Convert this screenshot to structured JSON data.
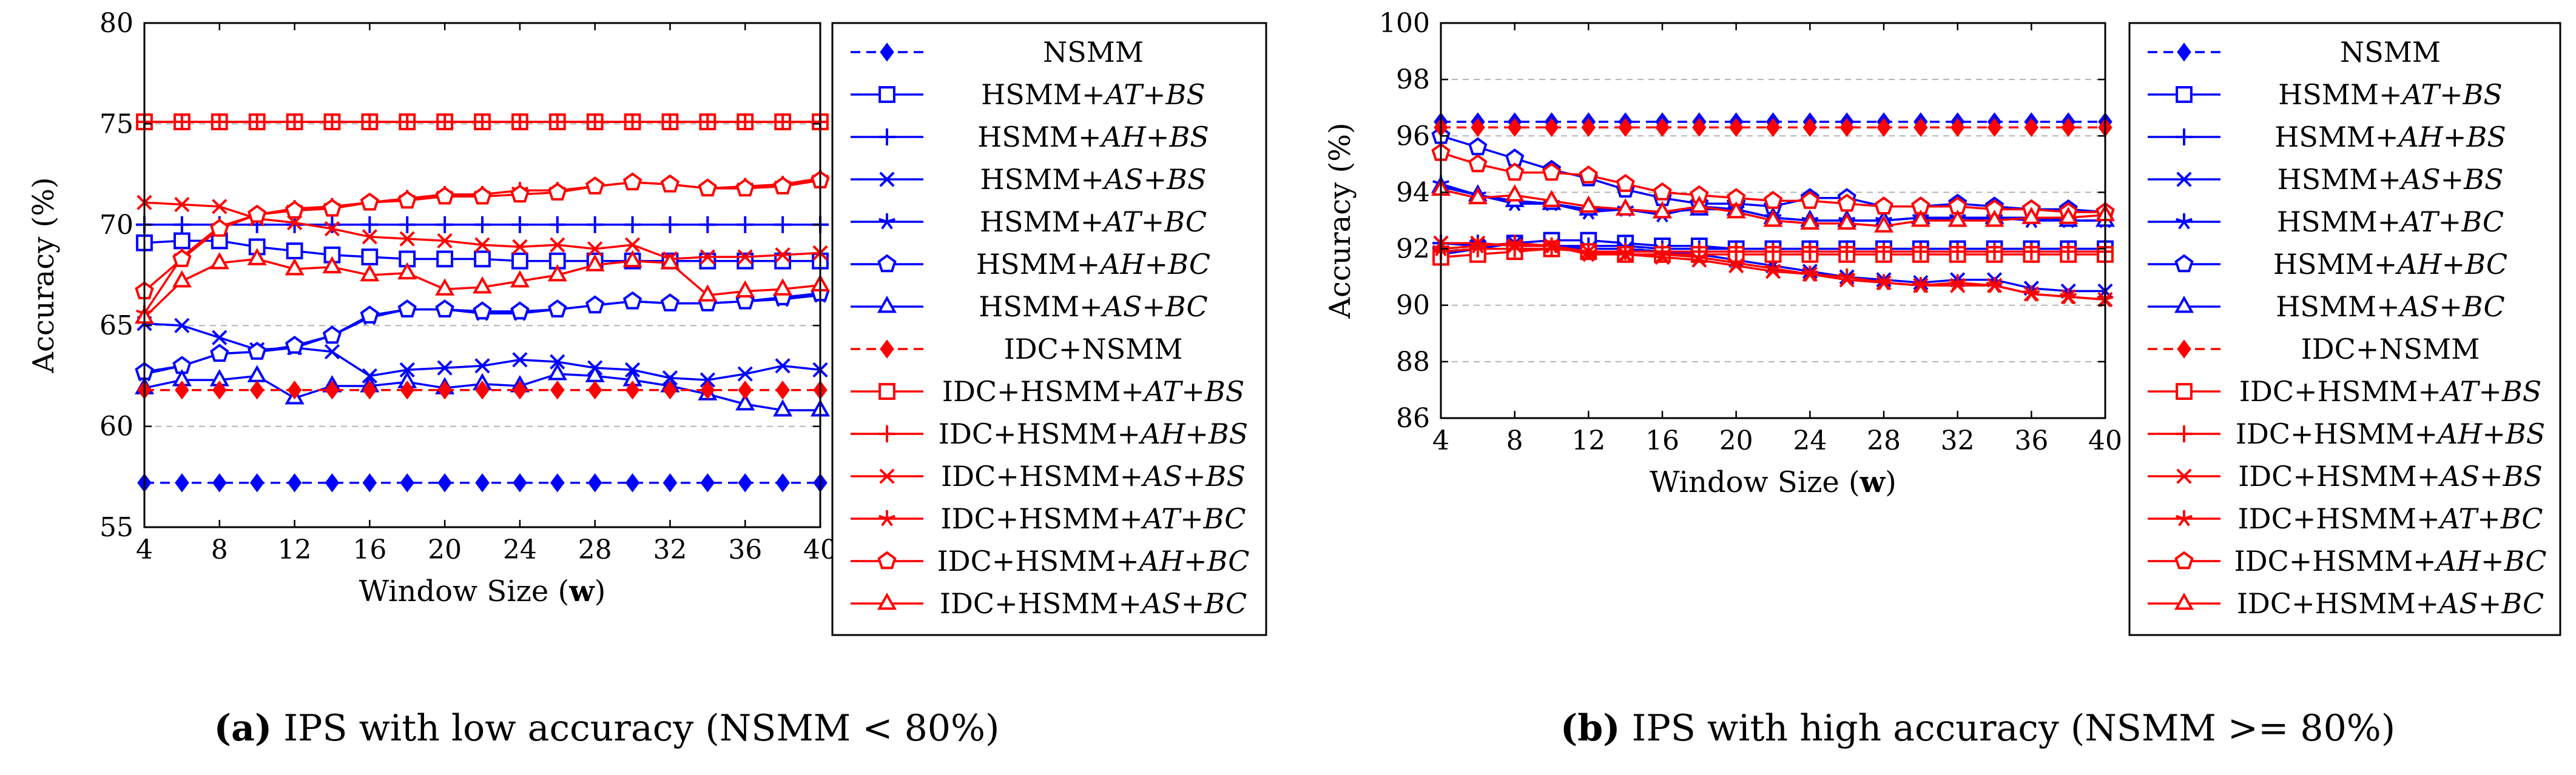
{
  "figure": {
    "colors": {
      "blue": "#0000ff",
      "red": "#ff0000",
      "grid": "#b3b3b3",
      "axis": "#000000"
    }
  },
  "chart_data": [
    {
      "type": "line",
      "caption": {
        "label": "(a)",
        "text": " IPS with low accuracy (NSMM < 80%)"
      },
      "xlabel": {
        "main": "Window Size (",
        "bold": "w",
        "end": ")"
      },
      "ylabel": "Accuracy (%)",
      "xlim": [
        4,
        40
      ],
      "ylim": [
        55,
        80
      ],
      "xticks": [
        4,
        8,
        12,
        16,
        20,
        24,
        28,
        32,
        36,
        40
      ],
      "yticks": [
        55,
        60,
        65,
        70,
        75,
        80
      ],
      "grid": "horizontal dashed",
      "legend_position": "right",
      "x": [
        4,
        6,
        8,
        10,
        12,
        14,
        16,
        18,
        20,
        22,
        24,
        26,
        28,
        30,
        32,
        34,
        36,
        38,
        40
      ],
      "series": [
        {
          "name": "NSMM",
          "color": "blue",
          "marker": "diamond",
          "dashed": true,
          "values": [
            57.2,
            57.2,
            57.2,
            57.2,
            57.2,
            57.2,
            57.2,
            57.2,
            57.2,
            57.2,
            57.2,
            57.2,
            57.2,
            57.2,
            57.2,
            57.2,
            57.2,
            57.2,
            57.2
          ]
        },
        {
          "name": "HSMM+AT+BS",
          "base": "HSMM+",
          "italic": "AT",
          "mid": "+",
          "italic2": "BS",
          "color": "blue",
          "marker": "square",
          "values": [
            69.1,
            69.2,
            69.2,
            68.9,
            68.7,
            68.5,
            68.4,
            68.3,
            68.3,
            68.3,
            68.2,
            68.2,
            68.2,
            68.2,
            68.2,
            68.2,
            68.2,
            68.2,
            68.2
          ]
        },
        {
          "name": "HSMM+AH+BS",
          "base": "HSMM+",
          "italic": "AH",
          "mid": "+",
          "italic2": "BS",
          "color": "blue",
          "marker": "plus",
          "values": [
            70.0,
            70.0,
            70.0,
            70.0,
            70.0,
            70.0,
            70.0,
            70.0,
            70.0,
            70.0,
            70.0,
            70.0,
            70.0,
            70.0,
            70.0,
            70.0,
            70.0,
            70.0,
            70.0
          ]
        },
        {
          "name": "HSMM+AS+BS",
          "base": "HSMM+",
          "italic": "AS",
          "mid": "+",
          "italic2": "BS",
          "color": "blue",
          "marker": "x",
          "values": [
            65.1,
            65.0,
            64.4,
            63.8,
            63.9,
            63.7,
            62.5,
            62.8,
            62.9,
            63.0,
            63.3,
            63.2,
            62.9,
            62.8,
            62.4,
            62.3,
            62.6,
            63.0,
            62.8
          ]
        },
        {
          "name": "HSMM+AT+BC",
          "base": "HSMM+",
          "italic": "AT",
          "mid": "+",
          "italic2": "BC",
          "color": "blue",
          "marker": "star",
          "values": [
            62.6,
            63.0,
            63.6,
            63.7,
            63.9,
            64.5,
            65.4,
            65.8,
            65.8,
            65.6,
            65.6,
            65.8,
            66.0,
            66.2,
            66.1,
            66.1,
            66.2,
            66.3,
            66.5
          ]
        },
        {
          "name": "HSMM+AH+BC",
          "base": "HSMM+",
          "italic": "AH",
          "mid": "+",
          "italic2": "BC",
          "color": "blue",
          "marker": "pentagon",
          "values": [
            62.7,
            63.0,
            63.6,
            63.7,
            64.0,
            64.5,
            65.5,
            65.8,
            65.8,
            65.7,
            65.7,
            65.8,
            66.0,
            66.2,
            66.1,
            66.1,
            66.2,
            66.4,
            66.6
          ]
        },
        {
          "name": "HSMM+AS+BC",
          "base": "HSMM+",
          "italic": "AS",
          "mid": "+",
          "italic2": "BC",
          "color": "blue",
          "marker": "triangle",
          "values": [
            61.9,
            62.3,
            62.3,
            62.5,
            61.4,
            62.0,
            62.0,
            62.2,
            61.9,
            62.1,
            62.0,
            62.6,
            62.5,
            62.3,
            62.0,
            61.6,
            61.1,
            60.8,
            60.8
          ]
        },
        {
          "name": "IDC+NSMM",
          "color": "red",
          "marker": "diamond",
          "dashed": true,
          "values": [
            61.8,
            61.8,
            61.8,
            61.8,
            61.8,
            61.8,
            61.8,
            61.8,
            61.8,
            61.8,
            61.8,
            61.8,
            61.8,
            61.8,
            61.8,
            61.8,
            61.8,
            61.8,
            61.8
          ]
        },
        {
          "name": "IDC+HSMM+AT+BS",
          "base": "IDC+HSMM+",
          "italic": "AT",
          "mid": "+",
          "italic2": "BS",
          "color": "red",
          "marker": "square",
          "values": [
            75.1,
            75.1,
            75.1,
            75.1,
            75.1,
            75.1,
            75.1,
            75.1,
            75.1,
            75.1,
            75.1,
            75.1,
            75.1,
            75.1,
            75.1,
            75.1,
            75.1,
            75.1,
            75.1
          ]
        },
        {
          "name": "IDC+HSMM+AH+BS",
          "base": "IDC+HSMM+",
          "italic": "AH",
          "mid": "+",
          "italic2": "BS",
          "color": "red",
          "marker": "plus",
          "values": [
            75.1,
            75.1,
            75.1,
            75.1,
            75.1,
            75.1,
            75.1,
            75.1,
            75.1,
            75.1,
            75.1,
            75.1,
            75.1,
            75.1,
            75.1,
            75.1,
            75.1,
            75.1,
            75.1
          ]
        },
        {
          "name": "IDC+HSMM+AS+BS",
          "base": "IDC+HSMM+",
          "italic": "AS",
          "mid": "+",
          "italic2": "BS",
          "color": "red",
          "marker": "x",
          "values": [
            71.1,
            71.0,
            70.9,
            70.3,
            70.1,
            69.8,
            69.4,
            69.3,
            69.2,
            69.0,
            68.9,
            69.0,
            68.8,
            69.0,
            68.3,
            68.4,
            68.4,
            68.5,
            68.6
          ]
        },
        {
          "name": "IDC+HSMM+AT+BC",
          "base": "IDC+HSMM+",
          "italic": "AT",
          "mid": "+",
          "italic2": "BC",
          "color": "red",
          "marker": "star",
          "values": [
            65.6,
            68.4,
            69.9,
            70.5,
            70.8,
            70.9,
            71.1,
            71.3,
            71.5,
            71.5,
            71.7,
            71.7,
            71.9,
            72.1,
            72.0,
            71.8,
            71.9,
            72.0,
            72.3
          ]
        },
        {
          "name": "IDC+HSMM+AH+BC",
          "base": "IDC+HSMM+",
          "italic": "AH",
          "mid": "+",
          "italic2": "BC",
          "color": "red",
          "marker": "pentagon",
          "values": [
            66.7,
            68.3,
            69.8,
            70.5,
            70.7,
            70.8,
            71.1,
            71.2,
            71.4,
            71.4,
            71.5,
            71.6,
            71.9,
            72.1,
            72.0,
            71.8,
            71.8,
            71.9,
            72.2
          ]
        },
        {
          "name": "IDC+HSMM+AS+BC",
          "base": "IDC+HSMM+",
          "italic": "AS",
          "mid": "+",
          "italic2": "BC",
          "color": "red",
          "marker": "triangle",
          "values": [
            65.4,
            67.2,
            68.1,
            68.3,
            67.8,
            67.9,
            67.5,
            67.6,
            66.8,
            66.9,
            67.2,
            67.5,
            68.0,
            68.2,
            68.1,
            66.5,
            66.7,
            66.8,
            67.0
          ]
        }
      ]
    },
    {
      "type": "line",
      "caption": {
        "label": "(b)",
        "text": " IPS with high accuracy (NSMM >= 80%)"
      },
      "xlabel": {
        "main": "Window Size (",
        "bold": "w",
        "end": ")"
      },
      "ylabel": "Accuracy (%)",
      "xlim": [
        4,
        40
      ],
      "ylim": [
        86,
        100
      ],
      "xticks": [
        4,
        8,
        12,
        16,
        20,
        24,
        28,
        32,
        36,
        40
      ],
      "yticks": [
        86,
        88,
        90,
        92,
        94,
        96,
        98,
        100
      ],
      "grid": "horizontal dashed",
      "legend_position": "right",
      "x": [
        4,
        6,
        8,
        10,
        12,
        14,
        16,
        18,
        20,
        22,
        24,
        26,
        28,
        30,
        32,
        34,
        36,
        38,
        40
      ],
      "series": [
        {
          "name": "NSMM",
          "color": "blue",
          "marker": "diamond",
          "dashed": true,
          "values": [
            96.5,
            96.5,
            96.5,
            96.5,
            96.5,
            96.5,
            96.5,
            96.5,
            96.5,
            96.5,
            96.5,
            96.5,
            96.5,
            96.5,
            96.5,
            96.5,
            96.5,
            96.5,
            96.5
          ]
        },
        {
          "name": "HSMM+AT+BS",
          "base": "HSMM+",
          "italic": "AT",
          "mid": "+",
          "italic2": "BS",
          "color": "blue",
          "marker": "square",
          "values": [
            91.8,
            92.0,
            92.2,
            92.3,
            92.3,
            92.2,
            92.1,
            92.1,
            92.0,
            92.0,
            92.0,
            92.0,
            92.0,
            92.0,
            92.0,
            92.0,
            92.0,
            92.0,
            92.0
          ]
        },
        {
          "name": "HSMM+AH+BS",
          "base": "HSMM+",
          "italic": "AH",
          "mid": "+",
          "italic2": "BS",
          "color": "blue",
          "marker": "plus",
          "values": [
            92.2,
            92.2,
            92.1,
            92.1,
            92.1,
            92.1,
            92.0,
            92.0,
            92.0,
            92.0,
            92.0,
            92.0,
            92.0,
            92.0,
            92.0,
            92.0,
            92.0,
            92.0,
            92.0
          ]
        },
        {
          "name": "HSMM+AS+BS",
          "base": "HSMM+",
          "italic": "AS",
          "mid": "+",
          "italic2": "BS",
          "color": "blue",
          "marker": "x",
          "values": [
            92.2,
            92.1,
            92.2,
            92.1,
            92.0,
            92.0,
            91.9,
            91.8,
            91.6,
            91.4,
            91.2,
            91.0,
            90.9,
            90.8,
            90.9,
            90.9,
            90.6,
            90.5,
            90.5
          ]
        },
        {
          "name": "HSMM+AT+BC",
          "base": "HSMM+",
          "italic": "AT",
          "mid": "+",
          "italic2": "BC",
          "color": "blue",
          "marker": "star",
          "values": [
            94.3,
            93.9,
            93.6,
            93.6,
            93.3,
            93.4,
            93.2,
            93.5,
            93.4,
            93.1,
            93.0,
            93.0,
            93.0,
            93.1,
            93.1,
            93.1,
            93.0,
            93.0,
            93.0
          ]
        },
        {
          "name": "HSMM+AH+BC",
          "base": "HSMM+",
          "italic": "AH",
          "mid": "+",
          "italic2": "BC",
          "color": "blue",
          "marker": "pentagon",
          "values": [
            96.0,
            95.6,
            95.2,
            94.8,
            94.5,
            94.1,
            93.8,
            93.6,
            93.6,
            93.5,
            93.8,
            93.8,
            93.5,
            93.5,
            93.6,
            93.5,
            93.4,
            93.4,
            93.3
          ]
        },
        {
          "name": "HSMM+AS+BC",
          "base": "HSMM+",
          "italic": "AS",
          "mid": "+",
          "italic2": "BC",
          "color": "blue",
          "marker": "triangle",
          "values": [
            94.2,
            93.9,
            93.7,
            93.6,
            93.4,
            93.4,
            93.3,
            93.4,
            93.4,
            93.1,
            93.0,
            93.0,
            93.0,
            93.1,
            93.0,
            93.1,
            93.1,
            93.0,
            93.0
          ]
        },
        {
          "name": "IDC+NSMM",
          "color": "red",
          "marker": "diamond",
          "dashed": true,
          "values": [
            96.3,
            96.3,
            96.3,
            96.3,
            96.3,
            96.3,
            96.3,
            96.3,
            96.3,
            96.3,
            96.3,
            96.3,
            96.3,
            96.3,
            96.3,
            96.3,
            96.3,
            96.3,
            96.3
          ]
        },
        {
          "name": "IDC+HSMM+AT+BS",
          "base": "IDC+HSMM+",
          "italic": "AT",
          "mid": "+",
          "italic2": "BS",
          "color": "red",
          "marker": "square",
          "values": [
            91.7,
            91.8,
            91.9,
            92.0,
            91.9,
            91.8,
            91.8,
            91.8,
            91.8,
            91.8,
            91.8,
            91.8,
            91.8,
            91.8,
            91.8,
            91.8,
            91.8,
            91.8,
            91.8
          ]
        },
        {
          "name": "IDC+HSMM+AH+BS",
          "base": "IDC+HSMM+",
          "italic": "AH",
          "mid": "+",
          "italic2": "BS",
          "color": "red",
          "marker": "plus",
          "values": [
            91.9,
            92.0,
            92.0,
            92.0,
            91.9,
            91.9,
            91.9,
            91.9,
            91.9,
            91.9,
            91.9,
            91.9,
            91.9,
            91.9,
            91.9,
            91.9,
            91.9,
            91.9,
            91.9
          ]
        },
        {
          "name": "IDC+HSMM+AS+BS",
          "base": "IDC+HSMM+",
          "italic": "AS",
          "mid": "+",
          "italic2": "BS",
          "color": "red",
          "marker": "x",
          "values": [
            92.2,
            92.2,
            92.1,
            92.1,
            91.9,
            91.8,
            91.7,
            91.6,
            91.4,
            91.2,
            91.1,
            90.9,
            90.8,
            90.7,
            90.7,
            90.7,
            90.4,
            90.3,
            90.2
          ]
        },
        {
          "name": "IDC+HSMM+AT+BC",
          "base": "IDC+HSMM+",
          "italic": "AT",
          "mid": "+",
          "italic2": "BC",
          "color": "red",
          "marker": "star",
          "values": [
            92.0,
            92.1,
            92.2,
            92.1,
            91.8,
            91.8,
            91.8,
            91.7,
            91.5,
            91.3,
            91.1,
            91.0,
            90.8,
            90.7,
            90.8,
            90.7,
            90.4,
            90.3,
            90.2
          ]
        },
        {
          "name": "IDC+HSMM+AH+BC",
          "base": "IDC+HSMM+",
          "italic": "AH",
          "mid": "+",
          "italic2": "BC",
          "color": "red",
          "marker": "pentagon",
          "values": [
            95.4,
            95.0,
            94.7,
            94.7,
            94.6,
            94.3,
            94.0,
            93.9,
            93.8,
            93.7,
            93.7,
            93.6,
            93.5,
            93.5,
            93.5,
            93.4,
            93.4,
            93.3,
            93.3
          ]
        },
        {
          "name": "IDC+HSMM+AS+BC",
          "base": "IDC+HSMM+",
          "italic": "AS",
          "mid": "+",
          "italic2": "BC",
          "color": "red",
          "marker": "triangle",
          "values": [
            94.1,
            93.8,
            93.9,
            93.7,
            93.5,
            93.4,
            93.3,
            93.5,
            93.3,
            93.0,
            92.9,
            92.9,
            92.8,
            93.0,
            93.0,
            93.0,
            93.1,
            93.1,
            93.2
          ]
        }
      ]
    }
  ]
}
